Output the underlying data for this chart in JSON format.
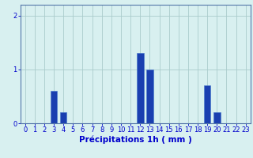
{
  "hours": [
    0,
    1,
    2,
    3,
    4,
    5,
    6,
    7,
    8,
    9,
    10,
    11,
    12,
    13,
    14,
    15,
    16,
    17,
    18,
    19,
    20,
    21,
    22,
    23
  ],
  "values": [
    0,
    0,
    0,
    0.6,
    0.2,
    0,
    0,
    0,
    0,
    0,
    0,
    0,
    1.3,
    1.0,
    0,
    0,
    0,
    0,
    0,
    0.7,
    0.2,
    0,
    0,
    0
  ],
  "bar_color": "#1a3fb0",
  "bar_edge_color": "#4477cc",
  "background_color": "#d8f0f0",
  "grid_color": "#aacccc",
  "axis_color": "#5577aa",
  "tick_color": "#0000cc",
  "xlabel": "Précipitations 1h ( mm )",
  "ylim": [
    0,
    2.2
  ],
  "yticks": [
    0,
    1,
    2
  ],
  "xlabel_fontsize": 7.5,
  "tick_fontsize": 6.0,
  "bar_width": 0.7
}
